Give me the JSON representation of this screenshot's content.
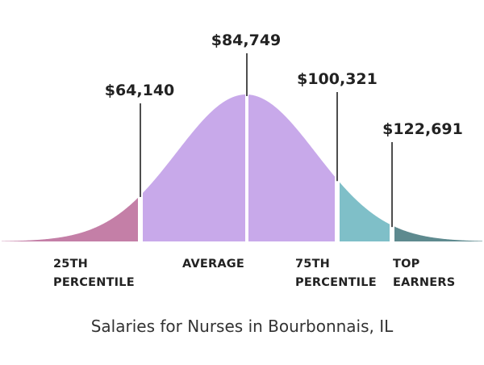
{
  "chart_data": {
    "type": "area",
    "title": "",
    "caption": "Salaries for Nurses in Bourbonnais, IL",
    "segments": [
      {
        "label_lines": [
          "25TH",
          "PERCENTILE"
        ],
        "value": "$64,140",
        "color": "#c47fa7"
      },
      {
        "label_lines": [
          "AVERAGE"
        ],
        "value": "$84,749",
        "color": "#c8a9ea"
      },
      {
        "label_lines": [
          "75TH",
          "PERCENTILE"
        ],
        "value": "$100,321",
        "color": "#7fbfc8"
      },
      {
        "label_lines": [
          "TOP",
          "EARNERS"
        ],
        "value": "$122,691",
        "color": "#5e8a8f"
      }
    ],
    "x_values": [
      64140,
      84749,
      100321,
      122691
    ],
    "grid": false,
    "legend": "none"
  }
}
